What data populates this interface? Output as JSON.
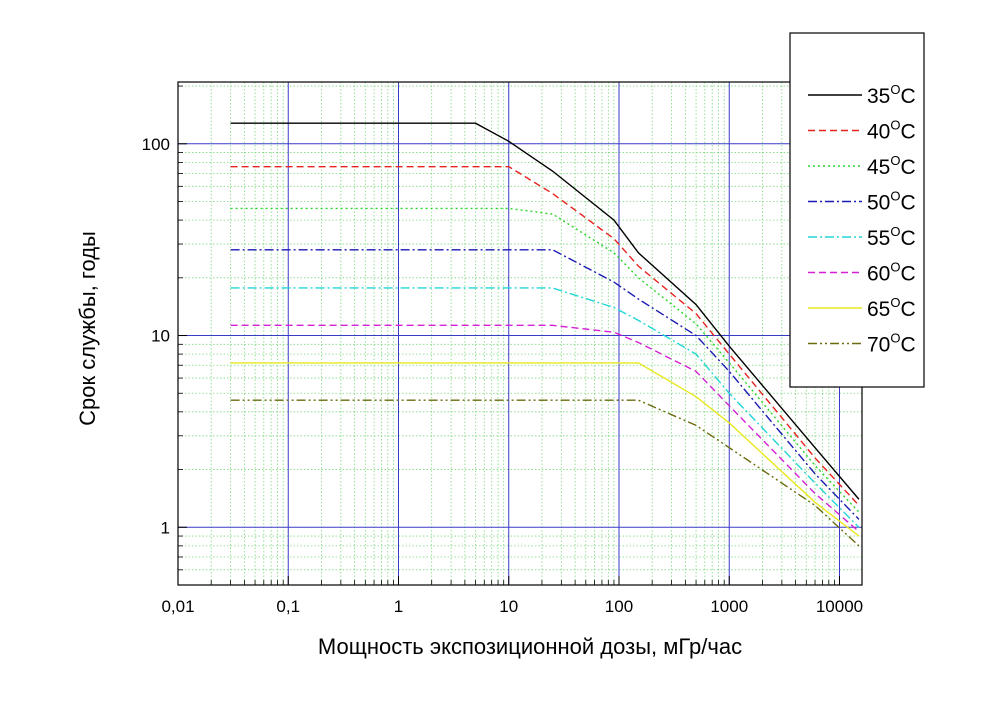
{
  "chart_data": {
    "type": "line",
    "xlabel": "Мощность экспозиционной дозы, мГр/час",
    "ylabel": "Срок службы, годы",
    "x_scale": "log",
    "y_scale": "log",
    "xlim": [
      0.01,
      16000
    ],
    "ylim": [
      0.5,
      210
    ],
    "x_ticks": [
      {
        "value": 0.01,
        "label": "0,01"
      },
      {
        "value": 0.1,
        "label": "0,1"
      },
      {
        "value": 1,
        "label": "1"
      },
      {
        "value": 10,
        "label": "10"
      },
      {
        "value": 100,
        "label": "100"
      },
      {
        "value": 1000,
        "label": "1000"
      },
      {
        "value": 10000,
        "label": "10000"
      }
    ],
    "y_ticks": [
      {
        "value": 1,
        "label": "1"
      },
      {
        "value": 10,
        "label": "10"
      },
      {
        "value": 100,
        "label": "100"
      }
    ],
    "grid": {
      "major": true,
      "minor": true,
      "major_color": "#3a3ac8",
      "minor_color": "#7fd87f"
    },
    "legend_position": "top-right, outside plot",
    "series": [
      {
        "name": "35°C",
        "label_main": "35",
        "label_sup": "O",
        "label_unit": "C",
        "color": "#000000",
        "dash": "solid",
        "points": [
          [
            0.03,
            128
          ],
          [
            5,
            128
          ],
          [
            10,
            103
          ],
          [
            25,
            72
          ],
          [
            90,
            40
          ],
          [
            150,
            27
          ],
          [
            500,
            14.5
          ],
          [
            1000,
            8.8
          ],
          [
            6000,
            2.6
          ],
          [
            15000,
            1.4
          ]
        ]
      },
      {
        "name": "40°C",
        "label_main": "40",
        "label_sup": "O",
        "label_unit": "C",
        "color": "#e8231f",
        "dash": "dash",
        "points": [
          [
            0.03,
            76
          ],
          [
            10,
            76
          ],
          [
            25,
            55
          ],
          [
            90,
            32
          ],
          [
            150,
            23
          ],
          [
            500,
            13
          ],
          [
            1000,
            8
          ],
          [
            6000,
            2.3
          ],
          [
            15000,
            1.3
          ]
        ]
      },
      {
        "name": "45°C",
        "label_main": "45",
        "label_sup": "O",
        "label_unit": "C",
        "color": "#2bd62b",
        "dash": "dot",
        "points": [
          [
            0.03,
            46
          ],
          [
            10,
            46
          ],
          [
            25,
            43
          ],
          [
            90,
            27
          ],
          [
            150,
            20
          ],
          [
            500,
            11.5
          ],
          [
            1000,
            7.2
          ],
          [
            6000,
            2.1
          ],
          [
            15000,
            1.2
          ]
        ]
      },
      {
        "name": "50°C",
        "label_main": "50",
        "label_sup": "O",
        "label_unit": "C",
        "color": "#1a1ab4",
        "dash": "dashdot",
        "points": [
          [
            0.03,
            28
          ],
          [
            25,
            28
          ],
          [
            90,
            19
          ],
          [
            150,
            15.5
          ],
          [
            500,
            10
          ],
          [
            1000,
            6.5
          ],
          [
            6000,
            1.9
          ],
          [
            15000,
            1.1
          ]
        ]
      },
      {
        "name": "55°C",
        "label_main": "55",
        "label_sup": "O",
        "label_unit": "C",
        "color": "#22d6d6",
        "dash": "dashdot",
        "points": [
          [
            0.03,
            17.7
          ],
          [
            25,
            17.7
          ],
          [
            90,
            14
          ],
          [
            150,
            12
          ],
          [
            500,
            8
          ],
          [
            1000,
            5
          ],
          [
            6000,
            1.7
          ],
          [
            15000,
            1.0
          ]
        ]
      },
      {
        "name": "60°C",
        "label_main": "60",
        "label_sup": "O",
        "label_unit": "C",
        "color": "#d61fd6",
        "dash": "dash",
        "points": [
          [
            0.03,
            11.3
          ],
          [
            25,
            11.3
          ],
          [
            90,
            10.4
          ],
          [
            150,
            9.2
          ],
          [
            500,
            6.5
          ],
          [
            1000,
            4.3
          ],
          [
            6000,
            1.5
          ],
          [
            15000,
            0.95
          ]
        ]
      },
      {
        "name": "65°C",
        "label_main": "65",
        "label_sup": "O",
        "label_unit": "C",
        "color": "#e8e820",
        "dash": "solid",
        "points": [
          [
            0.03,
            7.2
          ],
          [
            150,
            7.2
          ],
          [
            500,
            4.8
          ],
          [
            1000,
            3.5
          ],
          [
            6000,
            1.35
          ],
          [
            15000,
            0.9
          ]
        ]
      },
      {
        "name": "70°C",
        "label_main": "70",
        "label_sup": "O",
        "label_unit": "C",
        "color": "#6b6b10",
        "dash": "dashdotdot",
        "points": [
          [
            0.03,
            4.6
          ],
          [
            150,
            4.6
          ],
          [
            500,
            3.4
          ],
          [
            1000,
            2.6
          ],
          [
            6000,
            1.3
          ],
          [
            15000,
            0.8
          ]
        ]
      }
    ]
  }
}
